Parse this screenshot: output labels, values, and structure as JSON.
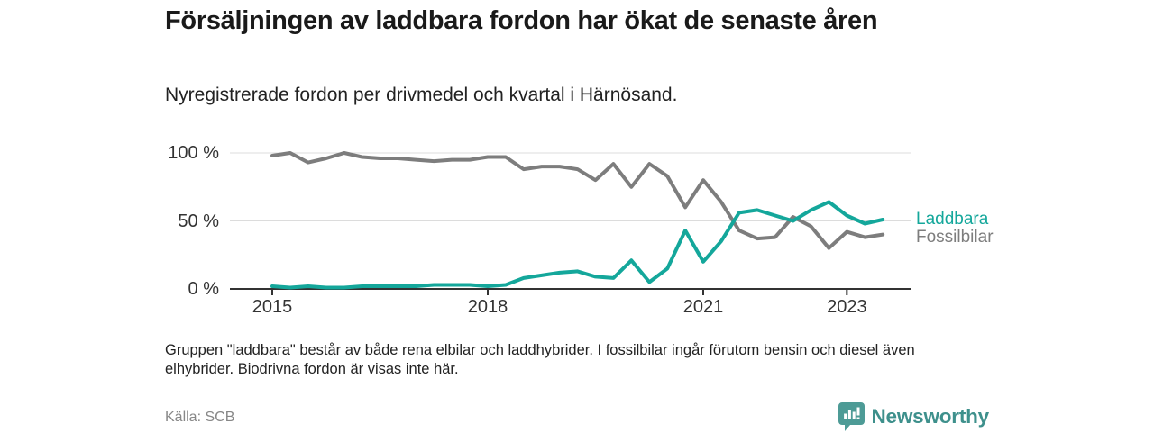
{
  "header": {
    "title": "Försäljningen av laddbara fordon har ökat de senaste åren",
    "subtitle": "Nyregistrerade fordon per drivmedel och kvartal i Härnösand."
  },
  "chart_data": {
    "type": "line",
    "title": "Försäljningen av laddbara fordon har ökat de senaste åren",
    "subtitle": "Nyregistrerade fordon per drivmedel och kvartal i Härnösand.",
    "x_unit": "quarter",
    "x_start": "2015 Q1",
    "x_end": "2023 Q3",
    "n_points": 35,
    "ylim": [
      0,
      100
    ],
    "grid": "horizontal",
    "legend_position": "right-end-of-lines",
    "y_ticks": [
      {
        "label": "100 %",
        "value": 100
      },
      {
        "label": "50 %",
        "value": 50
      },
      {
        "label": "0 %",
        "value": 0
      }
    ],
    "x_ticks": [
      {
        "label": "2015",
        "quarter_index": 0
      },
      {
        "label": "2018",
        "quarter_index": 12
      },
      {
        "label": "2021",
        "quarter_index": 24
      },
      {
        "label": "2023",
        "quarter_index": 32
      }
    ],
    "series": [
      {
        "name": "Laddbara",
        "color": "#14a79b",
        "values": [
          2,
          1,
          2,
          1,
          1,
          2,
          2,
          2,
          2,
          3,
          3,
          3,
          2,
          3,
          8,
          10,
          12,
          13,
          9,
          8,
          21,
          5,
          15,
          43,
          20,
          35,
          56,
          58,
          54,
          50,
          58,
          64,
          54,
          48,
          51
        ]
      },
      {
        "name": "Fossilbilar",
        "color": "#7d7d7d",
        "values": [
          98,
          100,
          93,
          96,
          100,
          97,
          96,
          96,
          95,
          94,
          95,
          95,
          97,
          97,
          88,
          90,
          90,
          88,
          80,
          92,
          75,
          92,
          83,
          60,
          80,
          64,
          43,
          37,
          38,
          53,
          46,
          30,
          42,
          38,
          40
        ]
      }
    ]
  },
  "footnote": "Gruppen \"laddbara\" består av både rena elbilar och laddhybrider. I fossilbilar ingår förutom bensin och diesel även elhybrider. Biodrivna fordon är visas inte här.",
  "source": "Källa: SCB",
  "logo": {
    "text": "Newsworthy",
    "icon": "newsworthy-chart-bubble-icon",
    "color": "#3e908c",
    "icon_color": "#4d9b96"
  },
  "colors": {
    "background": "#ffffff",
    "title_text": "#1a1a1a",
    "axis_text": "#333333",
    "gridline": "#dcdcdc",
    "axis_line": "#333333",
    "laddbara_line": "#14a79b",
    "fossilbilar_line": "#7d7d7d"
  }
}
